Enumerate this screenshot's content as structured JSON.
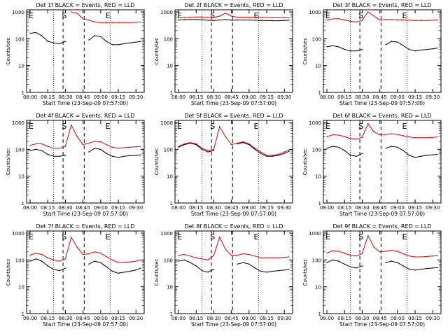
{
  "figure": {
    "ylabel": "Counts/sec",
    "xlabel": "Start Time (23-Sep-09 07:57:00)",
    "x_ticks": [
      "08:00",
      "08:15",
      "08:30",
      "08:45",
      "09:00",
      "09:15",
      "09:30"
    ],
    "y_ticks": [
      "1",
      "10",
      "100",
      "1000"
    ],
    "marker_S": "S",
    "marker_E": "E",
    "colors": {
      "events": "#000000",
      "lld": "#e00000",
      "axes": "#000000"
    }
  },
  "chart_data": [
    {
      "type": "line",
      "title": "Det 1f BLACK = Events, RED = LLD",
      "xlabel": "Start Time (23-Sep-09 07:57:00)",
      "ylabel": "Counts/sec",
      "ylog": true,
      "ylim": [
        1,
        1200
      ],
      "x_ticks": [
        "08:00",
        "08:15",
        "08:30",
        "08:45",
        "09:00",
        "09:15",
        "09:30"
      ],
      "vlines_dashed": [
        "08:28",
        "08:46"
      ],
      "vlines_dotted": [
        "08:20",
        "09:08"
      ],
      "labels_top": [
        {
          "text": "S",
          "at": "08:29"
        },
        {
          "text": "E",
          "at": "09:06"
        }
      ],
      "x": [
        "08:00",
        "08:05",
        "08:10",
        "08:15",
        "08:20",
        "08:25",
        "08:30",
        "08:35",
        "08:40",
        "08:45",
        "08:50",
        "08:55",
        "09:00",
        "09:05",
        "09:10",
        "09:15",
        "09:20",
        "09:25",
        "09:30",
        "09:34"
      ],
      "series": [
        {
          "color": "#000000",
          "values": [
            160,
            170,
            130,
            80,
            70,
            65,
            80,
            null,
            null,
            null,
            90,
            130,
            120,
            80,
            60,
            60,
            65,
            70,
            75,
            80
          ]
        },
        {
          "color": "#e00000",
          "values": [
            null,
            null,
            null,
            null,
            null,
            null,
            null,
            1000,
            900,
            550,
            500,
            420,
            400,
            400,
            400,
            400,
            400,
            400,
            410,
            420
          ]
        }
      ]
    },
    {
      "type": "line",
      "title": "Det 2f BLACK = Events, RED = LLD",
      "xlabel": "Start Time (23-Sep-09 07:57:00)",
      "ylabel": "Counts/sec",
      "ylog": true,
      "ylim": [
        1,
        1200
      ],
      "x_ticks": [
        "08:00",
        "08:15",
        "08:30",
        "08:45",
        "09:00",
        "09:15",
        "09:30"
      ],
      "vlines_dashed": [
        "08:28",
        "08:46"
      ],
      "vlines_dotted": [
        "08:20",
        "09:08"
      ],
      "labels_top": [
        {
          "text": "S",
          "at": "08:29"
        },
        {
          "text": "E",
          "at": "09:06"
        }
      ],
      "x": [
        "08:00",
        "08:05",
        "08:10",
        "08:15",
        "08:20",
        "08:25",
        "08:30",
        "08:35",
        "08:40",
        "08:45",
        "08:50",
        "08:55",
        "09:00",
        "09:05",
        "09:10",
        "09:15",
        "09:20",
        "09:25",
        "09:30",
        "09:34"
      ],
      "series": [
        {
          "color": "#000000",
          "values": [
            500,
            510,
            520,
            520,
            510,
            490,
            480,
            500,
            520,
            490,
            500,
            500,
            500,
            490,
            480,
            480,
            470,
            470,
            480,
            490
          ]
        },
        {
          "color": "#e00000",
          "values": [
            600,
            620,
            640,
            650,
            650,
            630,
            620,
            700,
            900,
            700,
            640,
            640,
            640,
            630,
            620,
            620,
            610,
            610,
            610,
            600
          ]
        }
      ]
    },
    {
      "type": "line",
      "title": "Det 3f BLACK = Events, RED = LLD",
      "xlabel": "Start Time (23-Sep-09 07:57:00)",
      "ylabel": "Counts/sec",
      "ylog": true,
      "ylim": [
        1,
        1200
      ],
      "x_ticks": [
        "08:00",
        "08:15",
        "08:30",
        "08:45",
        "09:00",
        "09:15",
        "09:30"
      ],
      "vlines_dashed": [
        "08:28",
        "08:46"
      ],
      "vlines_dotted": [
        "08:20",
        "09:08"
      ],
      "labels_top": [
        {
          "text": "S",
          "at": "08:29"
        },
        {
          "text": "E",
          "at": "09:06"
        }
      ],
      "x": [
        "08:00",
        "08:05",
        "08:10",
        "08:15",
        "08:20",
        "08:25",
        "08:30",
        "08:35",
        "08:40",
        "08:45",
        "08:50",
        "08:55",
        "09:00",
        "09:05",
        "09:10",
        "09:15",
        "09:20",
        "09:25",
        "09:30",
        "09:34"
      ],
      "series": [
        {
          "color": "#000000",
          "values": [
            50,
            55,
            50,
            40,
            35,
            35,
            40,
            null,
            null,
            null,
            60,
            80,
            75,
            55,
            40,
            35,
            38,
            40,
            42,
            45
          ]
        },
        {
          "color": "#e00000",
          "values": [
            500,
            550,
            560,
            500,
            450,
            420,
            480,
            1000,
            700,
            500,
            520,
            520,
            510,
            500,
            490,
            480,
            480,
            480,
            490,
            500
          ]
        }
      ]
    },
    {
      "type": "line",
      "title": "Det 4f BLACK = Events, RED = LLD",
      "xlabel": "Start Time (23-Sep-09 07:57:00)",
      "ylabel": "Counts/sec",
      "ylog": true,
      "ylim": [
        1,
        1200
      ],
      "x_ticks": [
        "08:00",
        "08:15",
        "08:30",
        "08:45",
        "09:00",
        "09:15",
        "09:30"
      ],
      "vlines_dashed": [
        "08:28",
        "08:46"
      ],
      "vlines_dotted": [
        "08:20",
        "09:08"
      ],
      "labels_top": [
        {
          "text": "S",
          "at": "08:29"
        },
        {
          "text": "E",
          "at": "09:06"
        }
      ],
      "x": [
        "08:00",
        "08:05",
        "08:10",
        "08:15",
        "08:20",
        "08:25",
        "08:30",
        "08:35",
        "08:40",
        "08:45",
        "08:50",
        "08:55",
        "09:00",
        "09:05",
        "09:10",
        "09:15",
        "09:20",
        "09:25",
        "09:30",
        "09:34"
      ],
      "series": [
        {
          "color": "#000000",
          "values": [
            90,
            100,
            90,
            65,
            55,
            55,
            60,
            null,
            null,
            null,
            80,
            110,
            100,
            70,
            55,
            50,
            55,
            58,
            60,
            62
          ]
        },
        {
          "color": "#e00000",
          "values": [
            140,
            160,
            160,
            130,
            110,
            110,
            130,
            800,
            300,
            150,
            170,
            200,
            190,
            150,
            120,
            110,
            115,
            120,
            125,
            130
          ]
        }
      ]
    },
    {
      "type": "line",
      "title": "Det 5f BLACK = Events, RED = LLD",
      "xlabel": "Start Time (23-Sep-09 07:57:00)",
      "ylabel": "Counts/sec",
      "ylog": true,
      "ylim": [
        1,
        1200
      ],
      "x_ticks": [
        "08:00",
        "08:15",
        "08:30",
        "08:45",
        "09:00",
        "09:15",
        "09:30"
      ],
      "vlines_dashed": [
        "08:28",
        "08:46"
      ],
      "vlines_dotted": [
        "08:20",
        "09:08"
      ],
      "labels_top": [
        {
          "text": "S",
          "at": "08:29"
        },
        {
          "text": "E",
          "at": "09:06"
        }
      ],
      "x": [
        "08:00",
        "08:05",
        "08:10",
        "08:15",
        "08:20",
        "08:25",
        "08:30",
        "08:35",
        "08:40",
        "08:45",
        "08:50",
        "08:55",
        "09:00",
        "09:05",
        "09:10",
        "09:15",
        "09:20",
        "09:25",
        "09:30",
        "09:34"
      ],
      "series": [
        {
          "color": "#000000",
          "values": [
            120,
            150,
            170,
            150,
            100,
            80,
            90,
            null,
            null,
            null,
            160,
            180,
            150,
            100,
            70,
            55,
            55,
            60,
            70,
            85
          ]
        },
        {
          "color": "#e00000",
          "values": [
            130,
            160,
            180,
            160,
            110,
            90,
            100,
            700,
            300,
            150,
            170,
            190,
            160,
            110,
            80,
            60,
            60,
            65,
            80,
            95
          ]
        }
      ]
    },
    {
      "type": "line",
      "title": "Det 6f BLACK = Events, RED = LLD",
      "xlabel": "Start Time (23-Sep-09 07:57:00)",
      "ylabel": "Counts/sec",
      "ylog": true,
      "ylim": [
        1,
        1200
      ],
      "x_ticks": [
        "08:00",
        "08:15",
        "08:30",
        "08:45",
        "09:00",
        "09:15",
        "09:30"
      ],
      "vlines_dashed": [
        "08:28",
        "08:46"
      ],
      "vlines_dotted": [
        "08:20",
        "09:08"
      ],
      "labels_top": [
        {
          "text": "S",
          "at": "08:29"
        },
        {
          "text": "E",
          "at": "09:06"
        }
      ],
      "x": [
        "08:00",
        "08:05",
        "08:10",
        "08:15",
        "08:20",
        "08:25",
        "08:30",
        "08:35",
        "08:40",
        "08:45",
        "08:50",
        "08:55",
        "09:00",
        "09:05",
        "09:10",
        "09:15",
        "09:20",
        "09:25",
        "09:30",
        "09:34"
      ],
      "series": [
        {
          "color": "#000000",
          "values": [
            110,
            130,
            120,
            90,
            60,
            55,
            70,
            null,
            null,
            null,
            110,
            130,
            120,
            90,
            60,
            50,
            55,
            60,
            62,
            65
          ]
        },
        {
          "color": "#e00000",
          "values": [
            300,
            350,
            340,
            300,
            250,
            240,
            280,
            900,
            450,
            350,
            360,
            380,
            360,
            320,
            290,
            270,
            270,
            270,
            280,
            290
          ]
        }
      ]
    },
    {
      "type": "line",
      "title": "Det 7f BLACK = Events, RED = LLD",
      "xlabel": "Start Time (23-Sep-09 07:57:00)",
      "ylabel": "Counts/sec",
      "ylog": true,
      "ylim": [
        1,
        1200
      ],
      "x_ticks": [
        "08:00",
        "08:15",
        "08:30",
        "08:45",
        "09:00",
        "09:15",
        "09:30"
      ],
      "vlines_dashed": [
        "08:28",
        "08:46"
      ],
      "vlines_dotted": [
        "08:20",
        "09:08"
      ],
      "labels_top": [
        {
          "text": "S",
          "at": "08:29"
        },
        {
          "text": "E",
          "at": "09:06"
        }
      ],
      "x": [
        "08:00",
        "08:05",
        "08:10",
        "08:15",
        "08:20",
        "08:25",
        "08:30",
        "08:35",
        "08:40",
        "08:45",
        "08:50",
        "08:55",
        "09:00",
        "09:05",
        "09:10",
        "09:15",
        "09:20",
        "09:25",
        "09:30",
        "09:34"
      ],
      "series": [
        {
          "color": "#000000",
          "values": [
            90,
            110,
            90,
            60,
            45,
            40,
            50,
            null,
            null,
            null,
            70,
            90,
            80,
            55,
            38,
            32,
            35,
            38,
            42,
            50
          ]
        },
        {
          "color": "#e00000",
          "values": [
            150,
            180,
            160,
            120,
            100,
            90,
            110,
            700,
            300,
            160,
            170,
            200,
            180,
            130,
            100,
            80,
            82,
            85,
            90,
            100
          ]
        }
      ]
    },
    {
      "type": "line",
      "title": "Det 8f BLACK = Events, RED = LLD",
      "xlabel": "Start Time (23-Sep-09 07:57:00)",
      "ylabel": "Counts/sec",
      "ylog": true,
      "ylim": [
        1,
        1200
      ],
      "x_ticks": [
        "08:00",
        "08:15",
        "08:30",
        "08:45",
        "09:00",
        "09:15",
        "09:30"
      ],
      "vlines_dashed": [
        "08:28",
        "08:46"
      ],
      "vlines_dotted": [
        "08:20",
        "09:08"
      ],
      "labels_top": [
        {
          "text": "S",
          "at": "08:29"
        },
        {
          "text": "E",
          "at": "09:06"
        }
      ],
      "x": [
        "08:00",
        "08:05",
        "08:10",
        "08:15",
        "08:20",
        "08:25",
        "08:30",
        "08:35",
        "08:40",
        "08:45",
        "08:50",
        "08:55",
        "09:00",
        "09:05",
        "09:10",
        "09:15",
        "09:20",
        "09:25",
        "09:30",
        "09:34"
      ],
      "series": [
        {
          "color": "#000000",
          "values": [
            90,
            100,
            80,
            60,
            40,
            35,
            45,
            null,
            null,
            null,
            70,
            80,
            70,
            50,
            38,
            35,
            38,
            40,
            42,
            45
          ]
        },
        {
          "color": "#e00000",
          "values": [
            150,
            160,
            140,
            120,
            110,
            100,
            150,
            700,
            250,
            150,
            150,
            170,
            160,
            140,
            120,
            120,
            120,
            120,
            125,
            130
          ]
        }
      ]
    },
    {
      "type": "line",
      "title": "Det 9f BLACK = Events, RED = LLD",
      "xlabel": "Start Time (23-Sep-09 07:57:00)",
      "ylabel": "Counts/sec",
      "ylog": true,
      "ylim": [
        1,
        1200
      ],
      "x_ticks": [
        "08:00",
        "08:15",
        "08:30",
        "08:45",
        "09:00",
        "09:15",
        "09:30"
      ],
      "vlines_dashed": [
        "08:28",
        "08:46"
      ],
      "vlines_dotted": [
        "08:20",
        "09:08"
      ],
      "labels_top": [
        {
          "text": "S",
          "at": "08:29"
        },
        {
          "text": "E",
          "at": "09:06"
        }
      ],
      "x": [
        "08:00",
        "08:05",
        "08:10",
        "08:15",
        "08:20",
        "08:25",
        "08:30",
        "08:35",
        "08:40",
        "08:45",
        "08:50",
        "08:55",
        "09:00",
        "09:05",
        "09:10",
        "09:15",
        "09:20",
        "09:25",
        "09:30",
        "09:34"
      ],
      "series": [
        {
          "color": "#000000",
          "values": [
            80,
            100,
            90,
            70,
            55,
            50,
            60,
            null,
            null,
            null,
            80,
            90,
            80,
            60,
            45,
            42,
            45,
            48,
            50,
            52
          ]
        },
        {
          "color": "#e00000",
          "values": [
            180,
            220,
            210,
            180,
            150,
            140,
            170,
            800,
            300,
            200,
            210,
            230,
            210,
            170,
            140,
            130,
            130,
            135,
            140,
            145
          ]
        }
      ]
    }
  ]
}
